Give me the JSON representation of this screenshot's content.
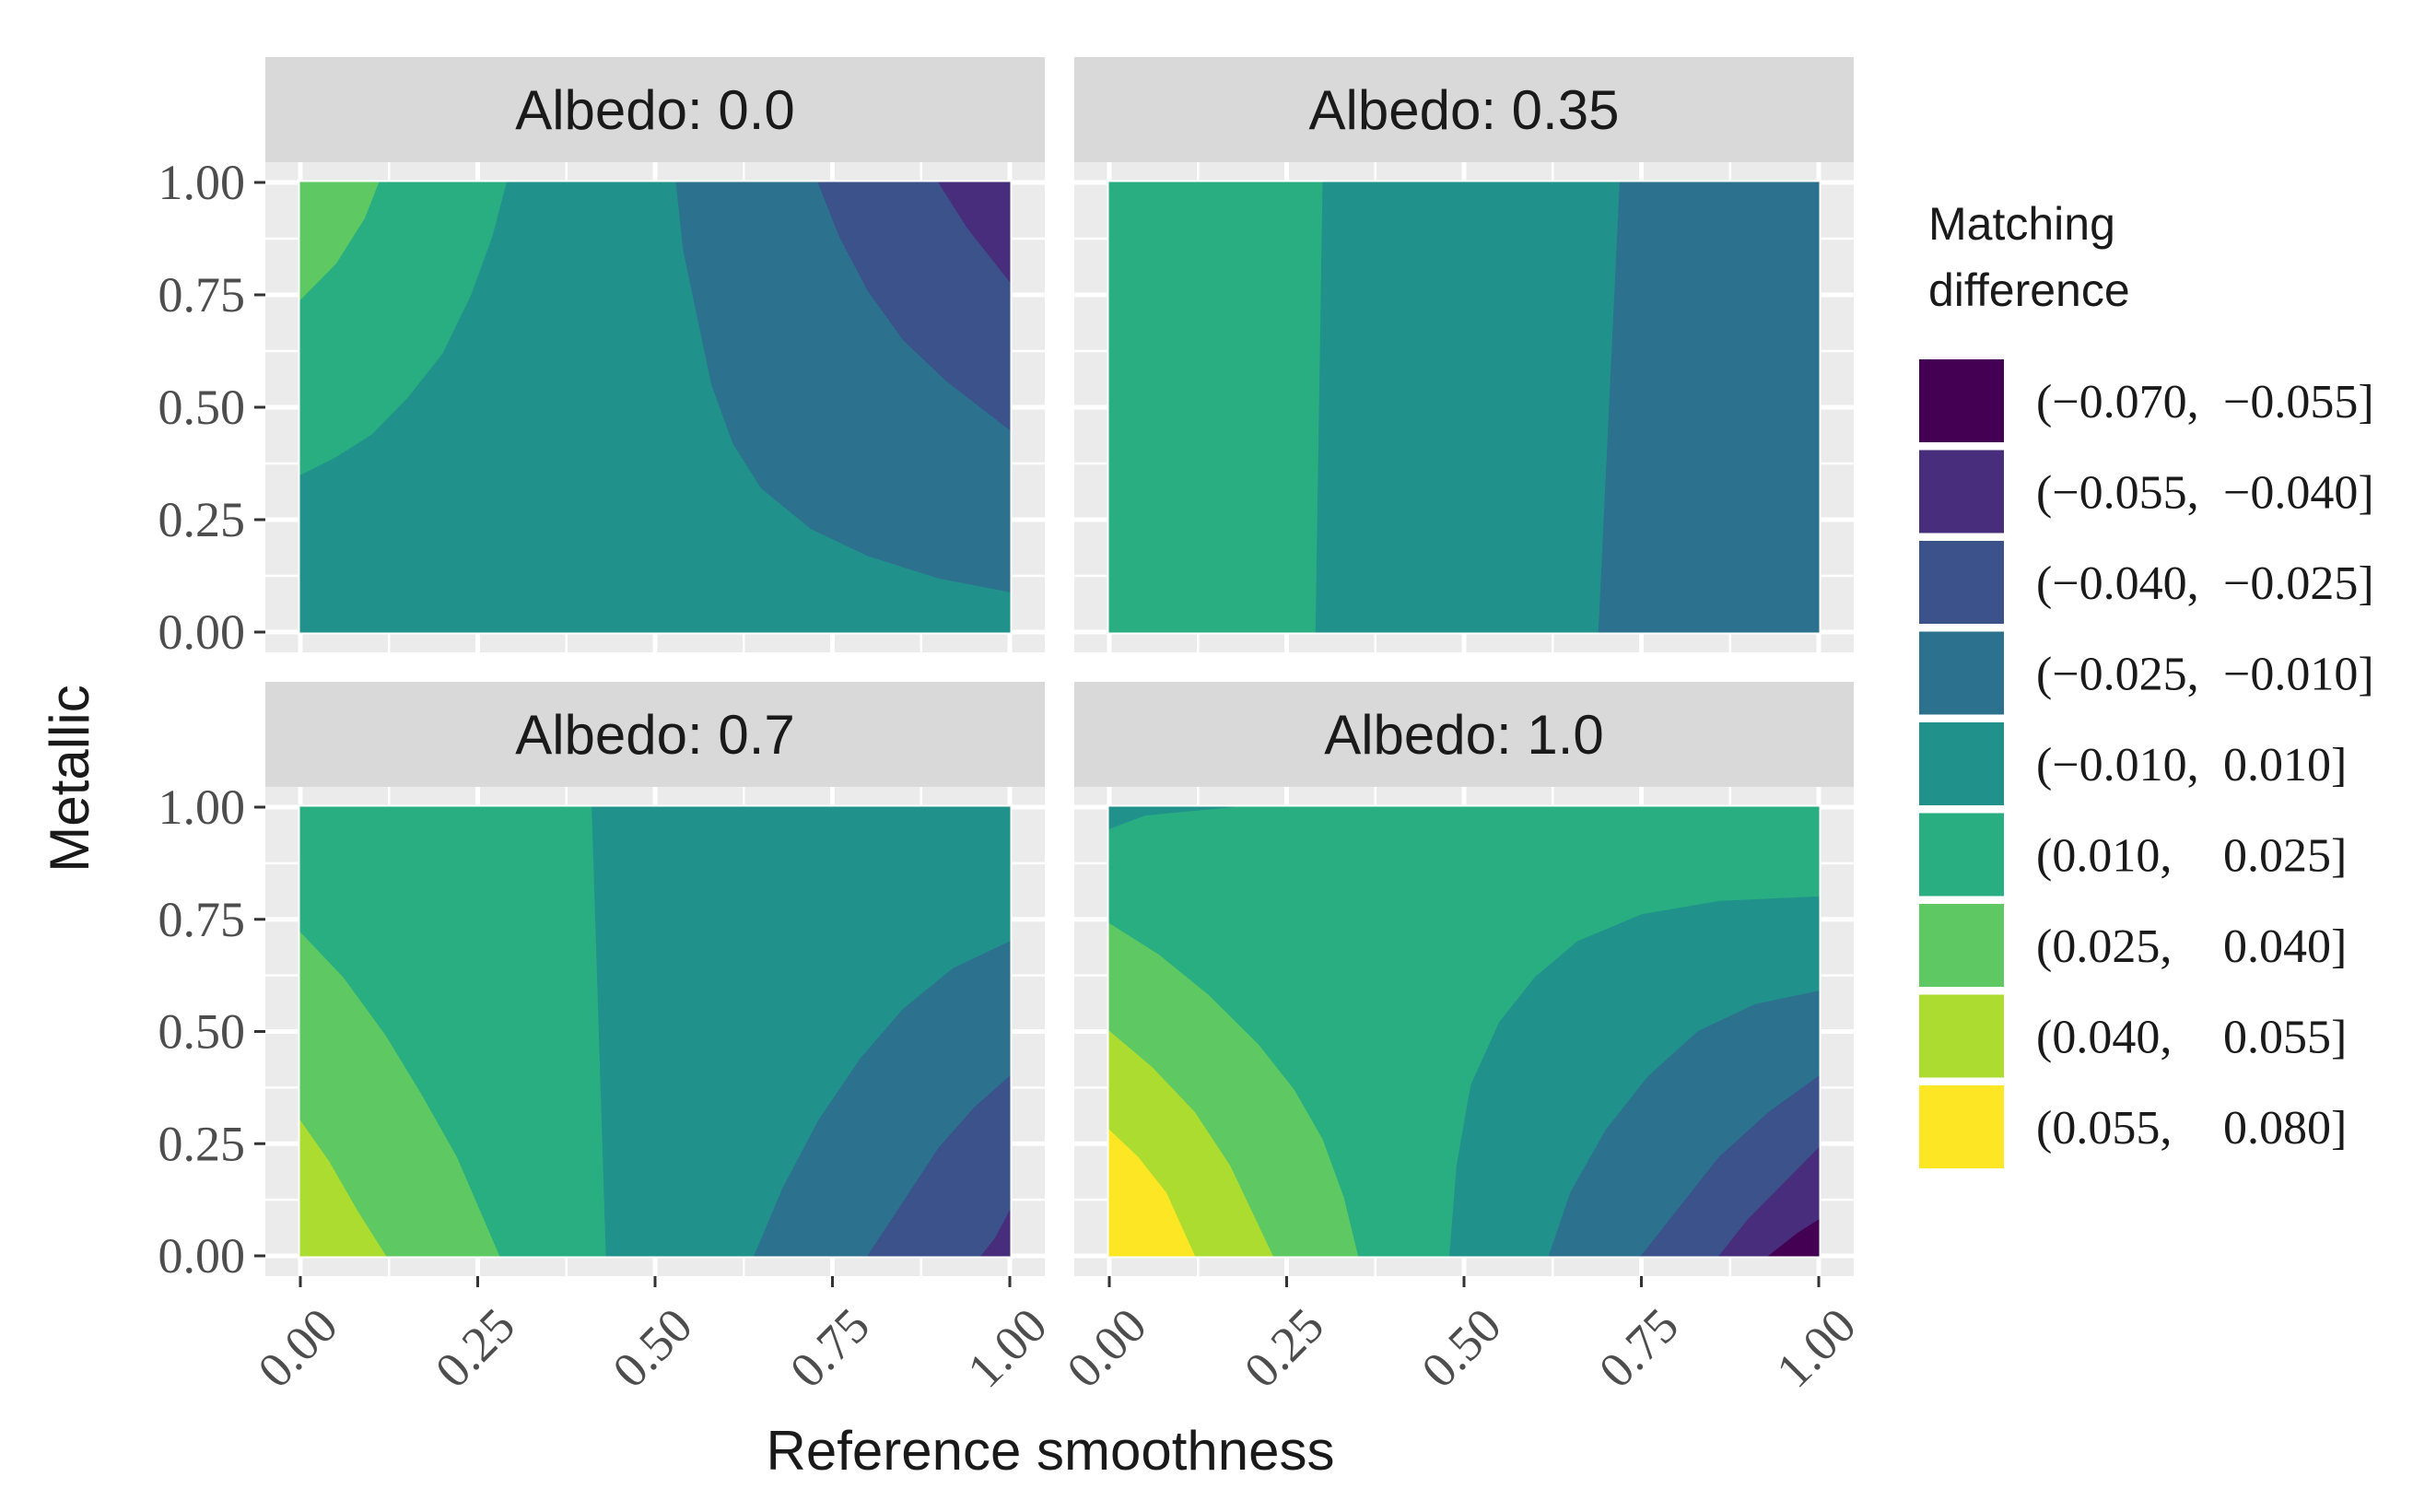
{
  "chart_data": {
    "type": "heatmap",
    "subtype": "filled-contour",
    "xlabel": "Reference smoothness",
    "ylabel": "Metallic",
    "xlim": [
      0,
      1
    ],
    "ylim": [
      0,
      1
    ],
    "x_ticks": [
      "0.00",
      "0.25",
      "0.50",
      "0.75",
      "1.00"
    ],
    "y_ticks": [
      "0.00",
      "0.25",
      "0.50",
      "0.75",
      "1.00"
    ],
    "legend": {
      "title_lines": [
        "Matching",
        "difference"
      ],
      "position": "right",
      "entries": [
        {
          "label_low": "(−0.070,",
          "label_high": "−0.055]",
          "color": "#440154"
        },
        {
          "label_low": "(−0.055,",
          "label_high": "−0.040]",
          "color": "#472d7b"
        },
        {
          "label_low": "(−0.040,",
          "label_high": "−0.025]",
          "color": "#3b528b"
        },
        {
          "label_low": "(−0.025,",
          "label_high": "−0.010]",
          "color": "#2c728e"
        },
        {
          "label_low": "(−0.010,",
          "label_high": "0.010]",
          "color": "#21918c"
        },
        {
          "label_low": "(0.010,",
          "label_high": "0.025]",
          "color": "#28ae80"
        },
        {
          "label_low": "(0.025,",
          "label_high": "0.040]",
          "color": "#5ec962"
        },
        {
          "label_low": "(0.040,",
          "label_high": "0.055]",
          "color": "#addc30"
        },
        {
          "label_low": "(0.055,",
          "label_high": "0.080]",
          "color": "#fde725"
        }
      ]
    },
    "panels": [
      {
        "title": "Albedo: 0.0",
        "regions": [
          {
            "level": 4,
            "points": [
              [
                0,
                0
              ],
              [
                1,
                0
              ],
              [
                1,
                1
              ],
              [
                0,
                1
              ]
            ]
          },
          {
            "level": 5,
            "points": [
              [
                0,
                0.35
              ],
              [
                0.05,
                0.39
              ],
              [
                0.1,
                0.44
              ],
              [
                0.15,
                0.52
              ],
              [
                0.2,
                0.62
              ],
              [
                0.24,
                0.75
              ],
              [
                0.27,
                0.88
              ],
              [
                0.29,
                1
              ],
              [
                0,
                1
              ]
            ]
          },
          {
            "level": 6,
            "points": [
              [
                0,
                0.74
              ],
              [
                0.05,
                0.82
              ],
              [
                0.09,
                0.92
              ],
              [
                0.11,
                1
              ],
              [
                0,
                1
              ]
            ]
          },
          {
            "level": 3,
            "points": [
              [
                0.53,
                1
              ],
              [
                0.54,
                0.85
              ],
              [
                0.56,
                0.7
              ],
              [
                0.58,
                0.55
              ],
              [
                0.61,
                0.42
              ],
              [
                0.65,
                0.32
              ],
              [
                0.72,
                0.23
              ],
              [
                0.8,
                0.17
              ],
              [
                0.9,
                0.12
              ],
              [
                1,
                0.09
              ],
              [
                1,
                1
              ]
            ]
          },
          {
            "level": 2,
            "points": [
              [
                0.73,
                1
              ],
              [
                0.76,
                0.88
              ],
              [
                0.8,
                0.76
              ],
              [
                0.85,
                0.65
              ],
              [
                0.91,
                0.56
              ],
              [
                1,
                0.45
              ],
              [
                1,
                1
              ]
            ]
          },
          {
            "level": 1,
            "points": [
              [
                0.9,
                1
              ],
              [
                0.94,
                0.9
              ],
              [
                1,
                0.78
              ],
              [
                1,
                1
              ]
            ]
          }
        ]
      },
      {
        "title": "Albedo: 0.35",
        "regions": [
          {
            "level": 4,
            "points": [
              [
                0,
                0
              ],
              [
                1,
                0
              ],
              [
                1,
                1
              ],
              [
                0,
                1
              ]
            ]
          },
          {
            "level": 5,
            "points": [
              [
                0,
                0
              ],
              [
                0.29,
                0
              ],
              [
                0.3,
                1
              ],
              [
                0,
                1
              ]
            ]
          },
          {
            "level": 3,
            "points": [
              [
                0.69,
                0
              ],
              [
                1,
                0
              ],
              [
                1,
                1
              ],
              [
                0.72,
                1
              ]
            ]
          }
        ]
      },
      {
        "title": "Albedo: 0.7",
        "regions": [
          {
            "level": 4,
            "points": [
              [
                0,
                0
              ],
              [
                1,
                0
              ],
              [
                1,
                1
              ],
              [
                0,
                1
              ]
            ]
          },
          {
            "level": 5,
            "points": [
              [
                0,
                0
              ],
              [
                0.43,
                0
              ],
              [
                0.42,
                0.5
              ],
              [
                0.41,
                1
              ],
              [
                0,
                1
              ]
            ]
          },
          {
            "level": 6,
            "points": [
              [
                0,
                0.72
              ],
              [
                0.06,
                0.62
              ],
              [
                0.12,
                0.49
              ],
              [
                0.17,
                0.36
              ],
              [
                0.22,
                0.22
              ],
              [
                0.25,
                0.11
              ],
              [
                0.28,
                0
              ],
              [
                0,
                0
              ]
            ]
          },
          {
            "level": 7,
            "points": [
              [
                0,
                0.3
              ],
              [
                0.04,
                0.21
              ],
              [
                0.08,
                0.1
              ],
              [
                0.12,
                0
              ],
              [
                0,
                0
              ]
            ]
          },
          {
            "level": 3,
            "points": [
              [
                0.64,
                0
              ],
              [
                0.68,
                0.15
              ],
              [
                0.73,
                0.3
              ],
              [
                0.79,
                0.44
              ],
              [
                0.85,
                0.55
              ],
              [
                0.92,
                0.64
              ],
              [
                1,
                0.7
              ],
              [
                1,
                0
              ]
            ]
          },
          {
            "level": 2,
            "points": [
              [
                0.8,
                0
              ],
              [
                0.85,
                0.12
              ],
              [
                0.9,
                0.24
              ],
              [
                0.95,
                0.33
              ],
              [
                1,
                0.4
              ],
              [
                1,
                0
              ]
            ]
          },
          {
            "level": 1,
            "points": [
              [
                0.96,
                0
              ],
              [
                0.98,
                0.04
              ],
              [
                1,
                0.1
              ],
              [
                1,
                0
              ]
            ]
          }
        ]
      },
      {
        "title": "Albedo: 1.0",
        "regions": [
          {
            "level": 4,
            "points": [
              [
                0,
                0
              ],
              [
                1,
                0
              ],
              [
                1,
                1
              ],
              [
                0,
                1
              ]
            ]
          },
          {
            "level": 5,
            "points": [
              [
                0,
                0.95
              ],
              [
                0.05,
                0.98
              ],
              [
                0.18,
                1
              ],
              [
                1,
                1
              ],
              [
                1,
                0
              ],
              [
                0,
                0
              ]
            ]
          },
          {
            "level": 6,
            "points": [
              [
                0,
                0.74
              ],
              [
                0.07,
                0.67
              ],
              [
                0.14,
                0.58
              ],
              [
                0.21,
                0.47
              ],
              [
                0.26,
                0.37
              ],
              [
                0.3,
                0.26
              ],
              [
                0.33,
                0.13
              ],
              [
                0.35,
                0
              ],
              [
                0,
                0
              ]
            ]
          },
          {
            "level": 7,
            "points": [
              [
                0,
                0.5
              ],
              [
                0.06,
                0.42
              ],
              [
                0.12,
                0.32
              ],
              [
                0.17,
                0.2
              ],
              [
                0.2,
                0.1
              ],
              [
                0.23,
                0
              ],
              [
                0,
                0
              ]
            ]
          },
          {
            "level": 8,
            "points": [
              [
                0,
                0.28
              ],
              [
                0.04,
                0.22
              ],
              [
                0.08,
                0.14
              ],
              [
                0.12,
                0
              ],
              [
                0,
                0
              ]
            ]
          },
          {
            "level": 4,
            "points": [
              [
                0.48,
                0
              ],
              [
                0.49,
                0.2
              ],
              [
                0.51,
                0.38
              ],
              [
                0.55,
                0.52
              ],
              [
                0.6,
                0.62
              ],
              [
                0.66,
                0.7
              ],
              [
                0.75,
                0.76
              ],
              [
                0.86,
                0.79
              ],
              [
                1,
                0.8
              ],
              [
                1,
                0
              ]
            ]
          },
          {
            "level": 3,
            "points": [
              [
                0.62,
                0
              ],
              [
                0.65,
                0.14
              ],
              [
                0.7,
                0.28
              ],
              [
                0.76,
                0.4
              ],
              [
                0.83,
                0.5
              ],
              [
                0.91,
                0.56
              ],
              [
                1,
                0.59
              ],
              [
                1,
                0
              ]
            ]
          },
          {
            "level": 2,
            "points": [
              [
                0.75,
                0
              ],
              [
                0.8,
                0.1
              ],
              [
                0.86,
                0.22
              ],
              [
                0.93,
                0.32
              ],
              [
                1,
                0.4
              ],
              [
                1,
                0
              ]
            ]
          },
          {
            "level": 1,
            "points": [
              [
                0.86,
                0
              ],
              [
                0.9,
                0.08
              ],
              [
                0.95,
                0.16
              ],
              [
                1,
                0.24
              ],
              [
                1,
                0
              ]
            ]
          },
          {
            "level": 0,
            "points": [
              [
                0.93,
                0
              ],
              [
                0.97,
                0.05
              ],
              [
                1,
                0.08
              ],
              [
                1,
                0
              ]
            ]
          }
        ]
      }
    ]
  }
}
